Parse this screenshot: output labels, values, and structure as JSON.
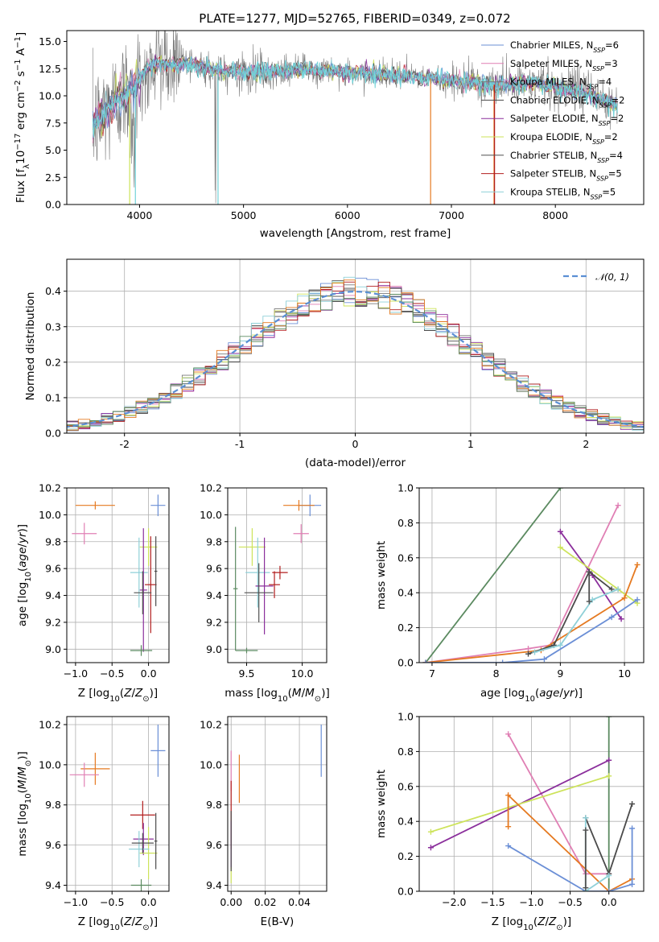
{
  "title": "PLATE=1277, MJD=52765, FIBERID=0349, z=0.072",
  "colors": {
    "chabrier_miles": "#6b8fd6",
    "salpeter_miles": "#e07fb4",
    "kroupa_miles": "#7a7a7a",
    "chabrier_elodie": "#4a4a4a",
    "salpeter_elodie": "#8b2f9c",
    "kroupa_elodie": "#cde35a",
    "chabrier_stelib": "#505050",
    "salpeter_stelib": "#b21e1e",
    "kroupa_stelib": "#8fd0d8",
    "spectrum": "#7a7a7a",
    "model": "#72d2d8",
    "gaussian": "#5b8fd4",
    "orange": "#e57a21",
    "green": "#5b8a60"
  },
  "chart_data": [
    {
      "id": "spectrum",
      "type": "line",
      "xlabel": "wavelength [Angstrom, rest frame]",
      "ylabel": "Flux [f_λ 10^-17 erg cm^-2 s^-1 A^-1]",
      "xlim": [
        3300,
        8850
      ],
      "ylim": [
        0,
        16
      ],
      "xticks": [
        4000,
        5000,
        6000,
        7000,
        8000
      ],
      "yticks": [
        "0.0",
        "2.5",
        "5.0",
        "7.5",
        "10.0",
        "12.5",
        "15.0"
      ],
      "legend_position": "top-right",
      "legend": [
        {
          "label": "Chabrier MILES, N_SSP=6",
          "color": "#6b8fd6"
        },
        {
          "label": "Salpeter MILES, N_SSP=3",
          "color": "#e07fb4"
        },
        {
          "label": "Kroupa MILES, N_SSP=4",
          "color": "#7a7a7a"
        },
        {
          "label": "Chabrier ELODIE, N_SSP=2",
          "color": "#4a4a4a"
        },
        {
          "label": "Salpeter ELODIE, N_SSP=2",
          "color": "#8b2f9c"
        },
        {
          "label": "Kroupa ELODIE, N_SSP=2",
          "color": "#cde35a"
        },
        {
          "label": "Chabrier STELIB, N_SSP=4",
          "color": "#505050"
        },
        {
          "label": "Salpeter STELIB, N_SSP=5",
          "color": "#b21e1e"
        },
        {
          "label": "Kroupa STELIB, N_SSP=5",
          "color": "#8fd0d8"
        }
      ],
      "continuum": [
        [
          3550,
          7.2
        ],
        [
          3650,
          8.3
        ],
        [
          3800,
          9.8
        ],
        [
          3950,
          10.8
        ],
        [
          4100,
          12.9
        ],
        [
          4300,
          12.9
        ],
        [
          4500,
          12.9
        ],
        [
          4800,
          12.3
        ],
        [
          5200,
          12.2
        ],
        [
          5600,
          12.4
        ],
        [
          6000,
          12.2
        ],
        [
          6400,
          11.9
        ],
        [
          6800,
          11.6
        ],
        [
          7200,
          11.2
        ],
        [
          7400,
          11.0
        ],
        [
          7800,
          11.2
        ],
        [
          8300,
          10.2
        ],
        [
          8500,
          9.5
        ],
        [
          8600,
          9.0
        ]
      ]
    },
    {
      "id": "residuals",
      "type": "histogram",
      "xlabel": "(data-model)/error",
      "ylabel": "Normed distribution",
      "xlim": [
        -2.5,
        2.5
      ],
      "ylim": [
        0,
        0.49
      ],
      "xticks": [
        -2,
        -1,
        0,
        1,
        2
      ],
      "yticks": [
        "0.0",
        "0.1",
        "0.2",
        "0.3",
        "0.4"
      ],
      "legend": [
        {
          "label": "𝒩(0, 1)",
          "color": "#5b8fd4"
        }
      ],
      "legend_position": "top-right",
      "reference_curve": "gaussian mean 0 sigma 1"
    },
    {
      "id": "age_vs_Z",
      "type": "errorbar",
      "xlabel": "Z [log10(Z/Z⊙)]",
      "ylabel": "age  [log10(age/yr)]",
      "xlim": [
        -1.12,
        0.28
      ],
      "ylim": [
        8.9,
        10.2
      ],
      "xticks": [
        "−1.0",
        "−0.5",
        "0.0"
      ],
      "yticks": [
        "9.0",
        "9.2",
        "9.4",
        "9.6",
        "9.8",
        "10.0",
        "10.2"
      ],
      "points": [
        {
          "x": 0.13,
          "y": 10.07,
          "xerr": 0.1,
          "yerr": 0.08,
          "color": "#6b8fd6"
        },
        {
          "x": -0.73,
          "y": 10.07,
          "xerr": 0.27,
          "yerr": 0.03,
          "color": "#e57a21"
        },
        {
          "x": -0.88,
          "y": 9.86,
          "xerr": 0.17,
          "yerr": 0.08,
          "color": "#e07fb4"
        },
        {
          "x": 0.0,
          "y": 9.76,
          "xerr": 0.12,
          "yerr": 0.14,
          "color": "#cde35a"
        },
        {
          "x": -0.13,
          "y": 9.57,
          "xerr": 0.12,
          "yerr": 0.26,
          "color": "#8fd0d8"
        },
        {
          "x": 0.03,
          "y": 9.48,
          "xerr": 0.08,
          "yerr": 0.36,
          "color": "#b21e1e"
        },
        {
          "x": -0.07,
          "y": 9.44,
          "xerr": 0.05,
          "yerr": 0.46,
          "color": "#8b2f9c"
        },
        {
          "x": -0.08,
          "y": 9.42,
          "xerr": 0.12,
          "yerr": 0.16,
          "color": "#505050"
        },
        {
          "x": 0.1,
          "y": 9.58,
          "xerr": 0.02,
          "yerr": 0.26,
          "color": "#4a4a4a"
        },
        {
          "x": -0.1,
          "y": 8.99,
          "xerr": 0.15,
          "yerr": 0.04,
          "color": "#5b8a60"
        }
      ]
    },
    {
      "id": "age_vs_mass",
      "type": "errorbar",
      "xlabel": "mass [log10(M/M⊙)]",
      "ylabel": "",
      "xlim": [
        9.33,
        10.22
      ],
      "ylim": [
        8.9,
        10.2
      ],
      "xticks": [
        "9.5",
        "10.0"
      ],
      "yticks": [
        "9.0",
        "9.2",
        "9.4",
        "9.6",
        "9.8",
        "10.0",
        "10.2"
      ],
      "points": [
        {
          "x": 10.07,
          "y": 10.07,
          "xerr": 0.1,
          "yerr": 0.08,
          "color": "#6b8fd6"
        },
        {
          "x": 9.97,
          "y": 10.07,
          "xerr": 0.14,
          "yerr": 0.04,
          "color": "#e57a21"
        },
        {
          "x": 9.99,
          "y": 9.86,
          "xerr": 0.07,
          "yerr": 0.07,
          "color": "#e07fb4"
        },
        {
          "x": 9.55,
          "y": 9.76,
          "xerr": 0.12,
          "yerr": 0.14,
          "color": "#cde35a"
        },
        {
          "x": 9.6,
          "y": 9.57,
          "xerr": 0.11,
          "yerr": 0.26,
          "color": "#8fd0d8"
        },
        {
          "x": 9.75,
          "y": 9.48,
          "xerr": 0.05,
          "yerr": 0.1,
          "color": "#b21e1e"
        },
        {
          "x": 9.66,
          "y": 9.47,
          "xerr": 0.08,
          "yerr": 0.36,
          "color": "#8b2f9c"
        },
        {
          "x": 9.61,
          "y": 9.42,
          "xerr": 0.13,
          "yerr": 0.22,
          "color": "#505050"
        },
        {
          "x": 9.8,
          "y": 9.57,
          "xerr": 0.07,
          "yerr": 0.05,
          "color": "#b21e1e"
        },
        {
          "x": 9.4,
          "y": 9.45,
          "xerr": 0.02,
          "yerr": 0.46,
          "color": "#5b8a60"
        },
        {
          "x": 9.5,
          "y": 8.99,
          "xerr": 0.1,
          "yerr": 0.02,
          "color": "#5b8a60"
        }
      ]
    },
    {
      "id": "massweight_vs_age",
      "type": "line",
      "xlabel": "age  [log10(age/yr)]",
      "ylabel": "mass weight",
      "xlim": [
        6.8,
        10.3
      ],
      "ylim": [
        0,
        1.0
      ],
      "xticks": [
        "7",
        "8",
        "9",
        "10"
      ],
      "yticks": [
        "0.0",
        "0.2",
        "0.4",
        "0.6",
        "0.8",
        "1.0"
      ],
      "series": [
        {
          "color": "#5b8a60",
          "x": [
            6.9,
            9.0
          ],
          "y": [
            0.0,
            1.0
          ]
        },
        {
          "color": "#e07fb4",
          "x": [
            6.9,
            8.5,
            8.85,
            9.9
          ],
          "y": [
            0.0,
            0.08,
            0.1,
            0.9
          ]
        },
        {
          "color": "#8b2f9c",
          "x": [
            9.0,
            9.5,
            9.95
          ],
          "y": [
            0.75,
            0.5,
            0.25
          ]
        },
        {
          "color": "#cde35a",
          "x": [
            9.0,
            9.9,
            10.2
          ],
          "y": [
            0.66,
            0.42,
            0.34
          ]
        },
        {
          "color": "#e57a21",
          "x": [
            6.9,
            8.7,
            10.0,
            10.2
          ],
          "y": [
            0.0,
            0.07,
            0.37,
            0.56
          ]
        },
        {
          "color": "#6b8fd6",
          "x": [
            6.9,
            8.1,
            8.75,
            9.8,
            10.2
          ],
          "y": [
            0.0,
            0.0,
            0.02,
            0.26,
            0.36
          ]
        },
        {
          "color": "#4a4a4a",
          "x": [
            8.5,
            8.9,
            9.45,
            9.8
          ],
          "y": [
            0.05,
            0.1,
            0.52,
            0.42
          ]
        },
        {
          "color": "#8fd0d8",
          "x": [
            8.6,
            9.0,
            9.5,
            9.9
          ],
          "y": [
            0.06,
            0.1,
            0.36,
            0.42
          ]
        },
        {
          "color": "#505050",
          "x": [
            9.45,
            9.45
          ],
          "y": [
            0.35,
            0.52
          ]
        }
      ]
    },
    {
      "id": "mass_vs_Z",
      "type": "errorbar",
      "xlabel": "Z [log10(Z/Z⊙)]",
      "ylabel": "mass [log10(M/M⊙)]",
      "xlim": [
        -1.12,
        0.28
      ],
      "ylim": [
        9.37,
        10.24
      ],
      "xticks": [
        "−1.0",
        "−0.5",
        "0.0"
      ],
      "yticks": [
        "9.4",
        "9.6",
        "9.8",
        "10.0",
        "10.2"
      ],
      "points": [
        {
          "x": 0.13,
          "y": 10.07,
          "xerr": 0.1,
          "yerr": 0.13,
          "color": "#6b8fd6"
        },
        {
          "x": -0.73,
          "y": 9.98,
          "xerr": 0.2,
          "yerr": 0.08,
          "color": "#e57a21"
        },
        {
          "x": -0.88,
          "y": 9.95,
          "xerr": 0.2,
          "yerr": 0.06,
          "color": "#e07fb4"
        },
        {
          "x": -0.08,
          "y": 9.75,
          "xerr": 0.17,
          "yerr": 0.07,
          "color": "#b21e1e"
        },
        {
          "x": -0.07,
          "y": 9.63,
          "xerr": 0.14,
          "yerr": 0.08,
          "color": "#8b2f9c"
        },
        {
          "x": 0.0,
          "y": 9.56,
          "xerr": 0.12,
          "yerr": 0.13,
          "color": "#cde35a"
        },
        {
          "x": -0.13,
          "y": 9.58,
          "xerr": 0.14,
          "yerr": 0.09,
          "color": "#8fd0d8"
        },
        {
          "x": 0.1,
          "y": 9.62,
          "xerr": 0.02,
          "yerr": 0.14,
          "color": "#4a4a4a"
        },
        {
          "x": -0.08,
          "y": 9.61,
          "xerr": 0.15,
          "yerr": 0.05,
          "color": "#505050"
        },
        {
          "x": -0.1,
          "y": 9.4,
          "xerr": 0.14,
          "yerr": 0.03,
          "color": "#5b8a60"
        }
      ]
    },
    {
      "id": "mass_vs_ebv",
      "type": "errorbar",
      "xlabel": "E(B-V)",
      "ylabel": "",
      "xlim": [
        -0.002,
        0.056
      ],
      "ylim": [
        9.37,
        10.24
      ],
      "xticks": [
        "0.00",
        "0.02",
        "0.04"
      ],
      "yticks": [
        "9.4",
        "9.6",
        "9.8",
        "10.0",
        "10.2"
      ],
      "points": [
        {
          "x": 0.0528,
          "y": 10.07,
          "xerr": 0,
          "yerr": 0.13,
          "color": "#6b8fd6"
        },
        {
          "x": 0.0048,
          "y": 9.93,
          "xerr": 0,
          "yerr": 0.12,
          "color": "#e57a21"
        },
        {
          "x": 0.0,
          "y": 9.97,
          "xerr": 0,
          "yerr": 0.1,
          "color": "#e07fb4"
        },
        {
          "x": 0.0,
          "y": 9.75,
          "xerr": 0,
          "yerr": 0.17,
          "color": "#b21e1e"
        },
        {
          "x": 0.0,
          "y": 9.6,
          "xerr": 0,
          "yerr": 0.12,
          "color": "#8b2f9c"
        },
        {
          "x": 0.0,
          "y": 9.45,
          "xerr": 0,
          "yerr": 0.04,
          "color": "#cde35a"
        },
        {
          "x": 0.0,
          "y": 9.62,
          "xerr": 0,
          "yerr": 0.15,
          "color": "#4a4a4a"
        }
      ]
    },
    {
      "id": "massweight_vs_Z",
      "type": "line",
      "xlabel": "Z [log10(Z/Z⊙)]",
      "ylabel": "mass weight",
      "xlim": [
        -2.45,
        0.45
      ],
      "ylim": [
        0,
        1.0
      ],
      "xticks": [
        "−2.0",
        "−1.5",
        "−1.0",
        "−0.5",
        "0.0"
      ],
      "yticks": [
        "0.0",
        "0.2",
        "0.4",
        "0.6",
        "0.8",
        "1.0"
      ],
      "series": [
        {
          "color": "#5b8a60",
          "x": [
            0.0,
            0.0
          ],
          "y": [
            0.0,
            1.0
          ]
        },
        {
          "color": "#e07fb4",
          "x": [
            -1.3,
            -0.3,
            0.0
          ],
          "y": [
            0.9,
            0.1,
            0.1
          ]
        },
        {
          "color": "#8b2f9c",
          "x": [
            -2.3,
            0.0
          ],
          "y": [
            0.25,
            0.75
          ]
        },
        {
          "color": "#cde35a",
          "x": [
            -2.3,
            0.0
          ],
          "y": [
            0.34,
            0.66
          ]
        },
        {
          "color": "#e57a21",
          "x": [
            -1.3,
            -1.3,
            0.0,
            0.3
          ],
          "y": [
            0.37,
            0.55,
            0.0,
            0.07
          ]
        },
        {
          "color": "#6b8fd6",
          "x": [
            -1.3,
            -0.3,
            0.0,
            0.3,
            0.3
          ],
          "y": [
            0.26,
            0.0,
            0.0,
            0.04,
            0.36
          ]
        },
        {
          "color": "#4a4a4a",
          "x": [
            -0.3,
            0.0,
            0.3
          ],
          "y": [
            0.42,
            0.1,
            0.5
          ]
        },
        {
          "color": "#8fd0d8",
          "x": [
            -0.3,
            -0.3,
            0.0
          ],
          "y": [
            0.42,
            0.0,
            0.09
          ]
        },
        {
          "color": "#505050",
          "x": [
            -0.3,
            -0.3
          ],
          "y": [
            0.02,
            0.35
          ]
        }
      ]
    }
  ]
}
